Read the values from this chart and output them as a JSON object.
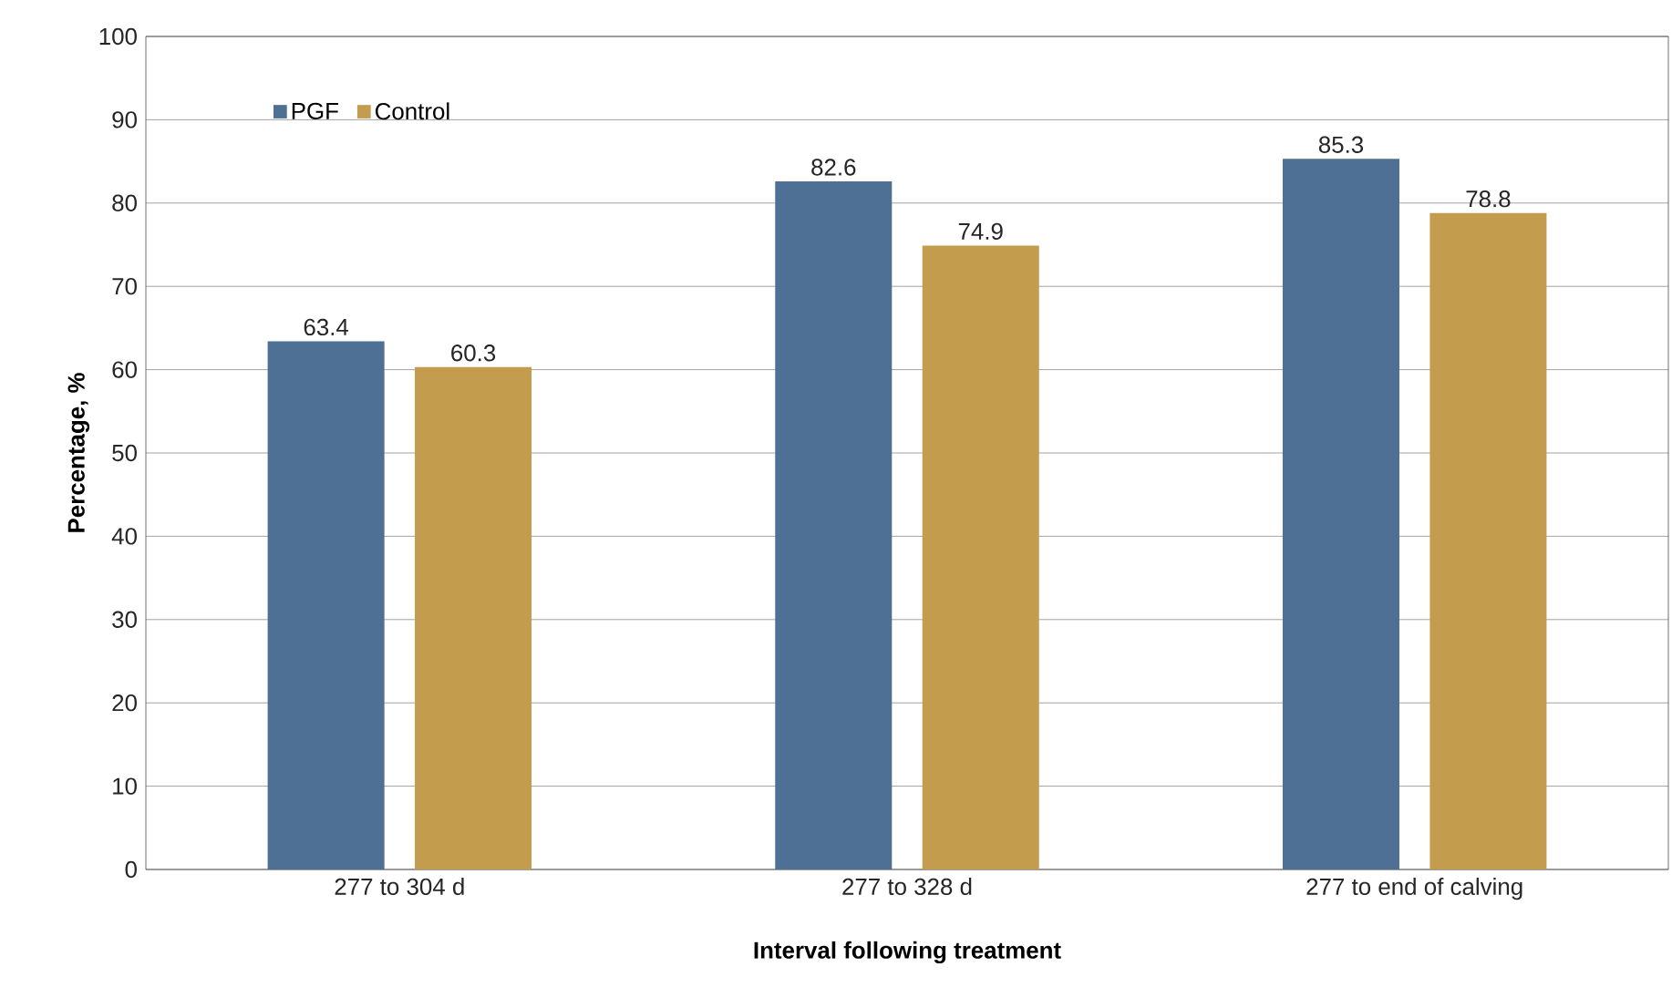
{
  "chart_data": {
    "type": "bar",
    "xlabel": "**Interval following treatment**",
    "ylabel": "**Percentage, %**",
    "categories": [
      "277 to 304 d",
      "277 to 328 d",
      "277 to end of calving"
    ],
    "series": [
      {
        "name": "PGF",
        "color": "#4e7094",
        "values": [
          63.4,
          82.6,
          85.3
        ]
      },
      {
        "name": "Control",
        "color": "#c49c4e",
        "values": [
          60.3,
          74.9,
          78.8
        ]
      }
    ],
    "ylim": [
      0,
      100
    ],
    "yticks": [
      0,
      10,
      20,
      30,
      40,
      50,
      60,
      70,
      80,
      90,
      100
    ],
    "grid": "y",
    "legend": "top left",
    "data_labels": true
  }
}
